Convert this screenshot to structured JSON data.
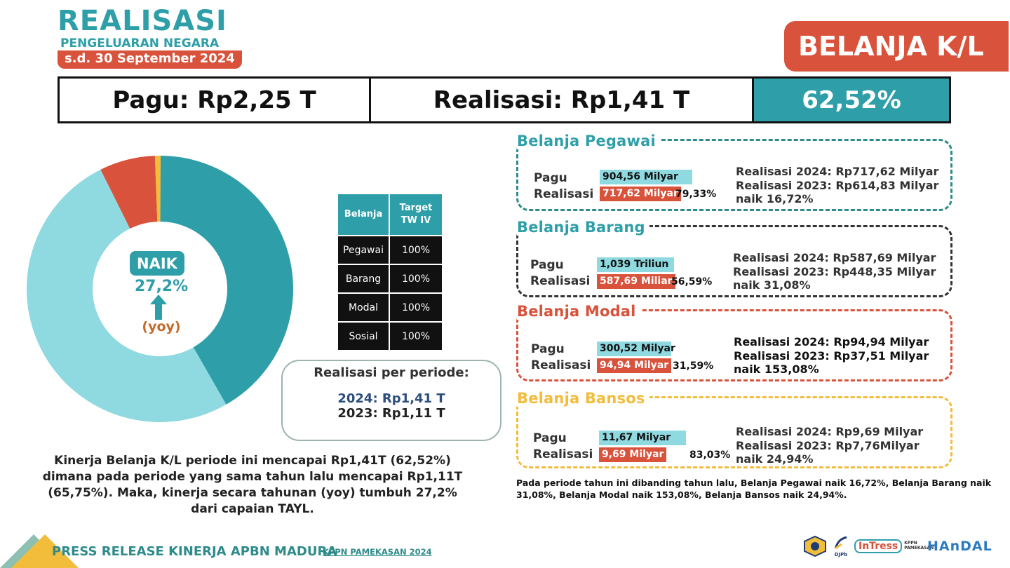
{
  "header": {
    "title": "REALISASI",
    "subtitle": "PENGELUARAN NEGARA",
    "date": "s.d. 30 September 2024",
    "badge": "BELANJA K/L"
  },
  "summary": {
    "pagu": "Pagu: Rp2,25 T",
    "realisasi": "Realisasi:  Rp1,41 T",
    "percent": "62,52%"
  },
  "donut": {
    "naik_label": "NAIK",
    "naik_value": "27,2%",
    "yoy": "(yoy)",
    "shares": {
      "pegawai": 0.5094,
      "barang": 0.4172,
      "modal": 0.0674,
      "bansos": 0.0069
    },
    "colors": {
      "pegawai": "#8fd9e0",
      "barang": "#2e9fa8",
      "modal": "#d9523b",
      "bansos": "#f3bd3c"
    }
  },
  "target_table": {
    "headers": [
      "Belanja",
      "Target TW IV"
    ],
    "rows": [
      {
        "belanja": "Pegawai",
        "target": "100%"
      },
      {
        "belanja": "Barang",
        "target": "100%"
      },
      {
        "belanja": "Modal",
        "target": "100%"
      },
      {
        "belanja": "Sosial",
        "target": "100%"
      }
    ]
  },
  "periode": {
    "title": "Realisasi per periode:",
    "y2024": "2024: Rp1,41 T",
    "y2023": "2023: Rp1,11 T"
  },
  "narrative": "Kinerja Belanja K/L periode ini mencapai Rp1,41T (62,52%) dimana pada periode yang sama tahun lalu mencapai Rp1,11T  (65,75%). Maka, kinerja secara tahunan (yoy) tumbuh 27,2% dari capaian TAYL.",
  "panels": [
    {
      "title": "Belanja Pegawai",
      "color": "#2e9fa8",
      "pagu_label": "Pagu",
      "real_label": "Realisasi",
      "pagu": "904,56 Milyar",
      "realisasi": "717,62 Milyar",
      "pct": "79,33%",
      "r2024": "Realisasi 2024: Rp717,62  Milyar",
      "r2023": "Realisasi 2023: Rp614,83 Milyar",
      "naik": "naik 16,72%"
    },
    {
      "title": "Belanja Barang",
      "color": "#2e9fa8",
      "pagu_label": "Pagu",
      "real_label": "Realisasi",
      "pagu": "1,039 Triliun",
      "realisasi": "587,69 Miliar",
      "pct": "56,59%",
      "r2024": "Realisasi 2024: Rp587,69 Milyar",
      "r2023": "Realisasi 2023: Rp448,35 Milyar",
      "naik": "naik 31,08%"
    },
    {
      "title": "Belanja Modal",
      "color": "#d9523b",
      "pagu_label": "Pagu",
      "real_label": "Realisasi",
      "pagu": "300,52 Milyar",
      "realisasi": "94,94 Milyar",
      "pct": "31,59%",
      "r2024": "Realisasi 2024: Rp94,94 Milyar",
      "r2023": "Realisasi 2023: Rp37,51 Milyar",
      "naik": "naik 153,08%"
    },
    {
      "title": "Belanja Bansos",
      "color": "#f3bd3c",
      "pagu_label": "Pagu",
      "real_label": "Realisasi",
      "pagu": "11,67 Milyar",
      "realisasi": "9,69 Milyar",
      "pct": "83,03%",
      "r2024": "Realisasi 2024: Rp9,69 Milyar",
      "r2023": "Realisasi 2023: Rp7,76Milyar",
      "naik": "naik 24,94%"
    }
  ],
  "footnote": "Pada periode tahun ini dibanding tahun lalu, Belanja Pegawai naik 16,72%, Belanja Barang naik 31,08%, Belanja Modal naik 153,08%, Belanja Bansos naik 24,94%.",
  "footer": {
    "text": "PRESS RELEASE KINERJA APBN MADURA",
    "kppn": "KPPN PAMEKASAN 2024",
    "logo_djpb": "DJPb",
    "logo_intress": "InTress",
    "logo_intress_sub": "KPPN PAMEKASAN",
    "logo_handal": "HAnDAL"
  }
}
